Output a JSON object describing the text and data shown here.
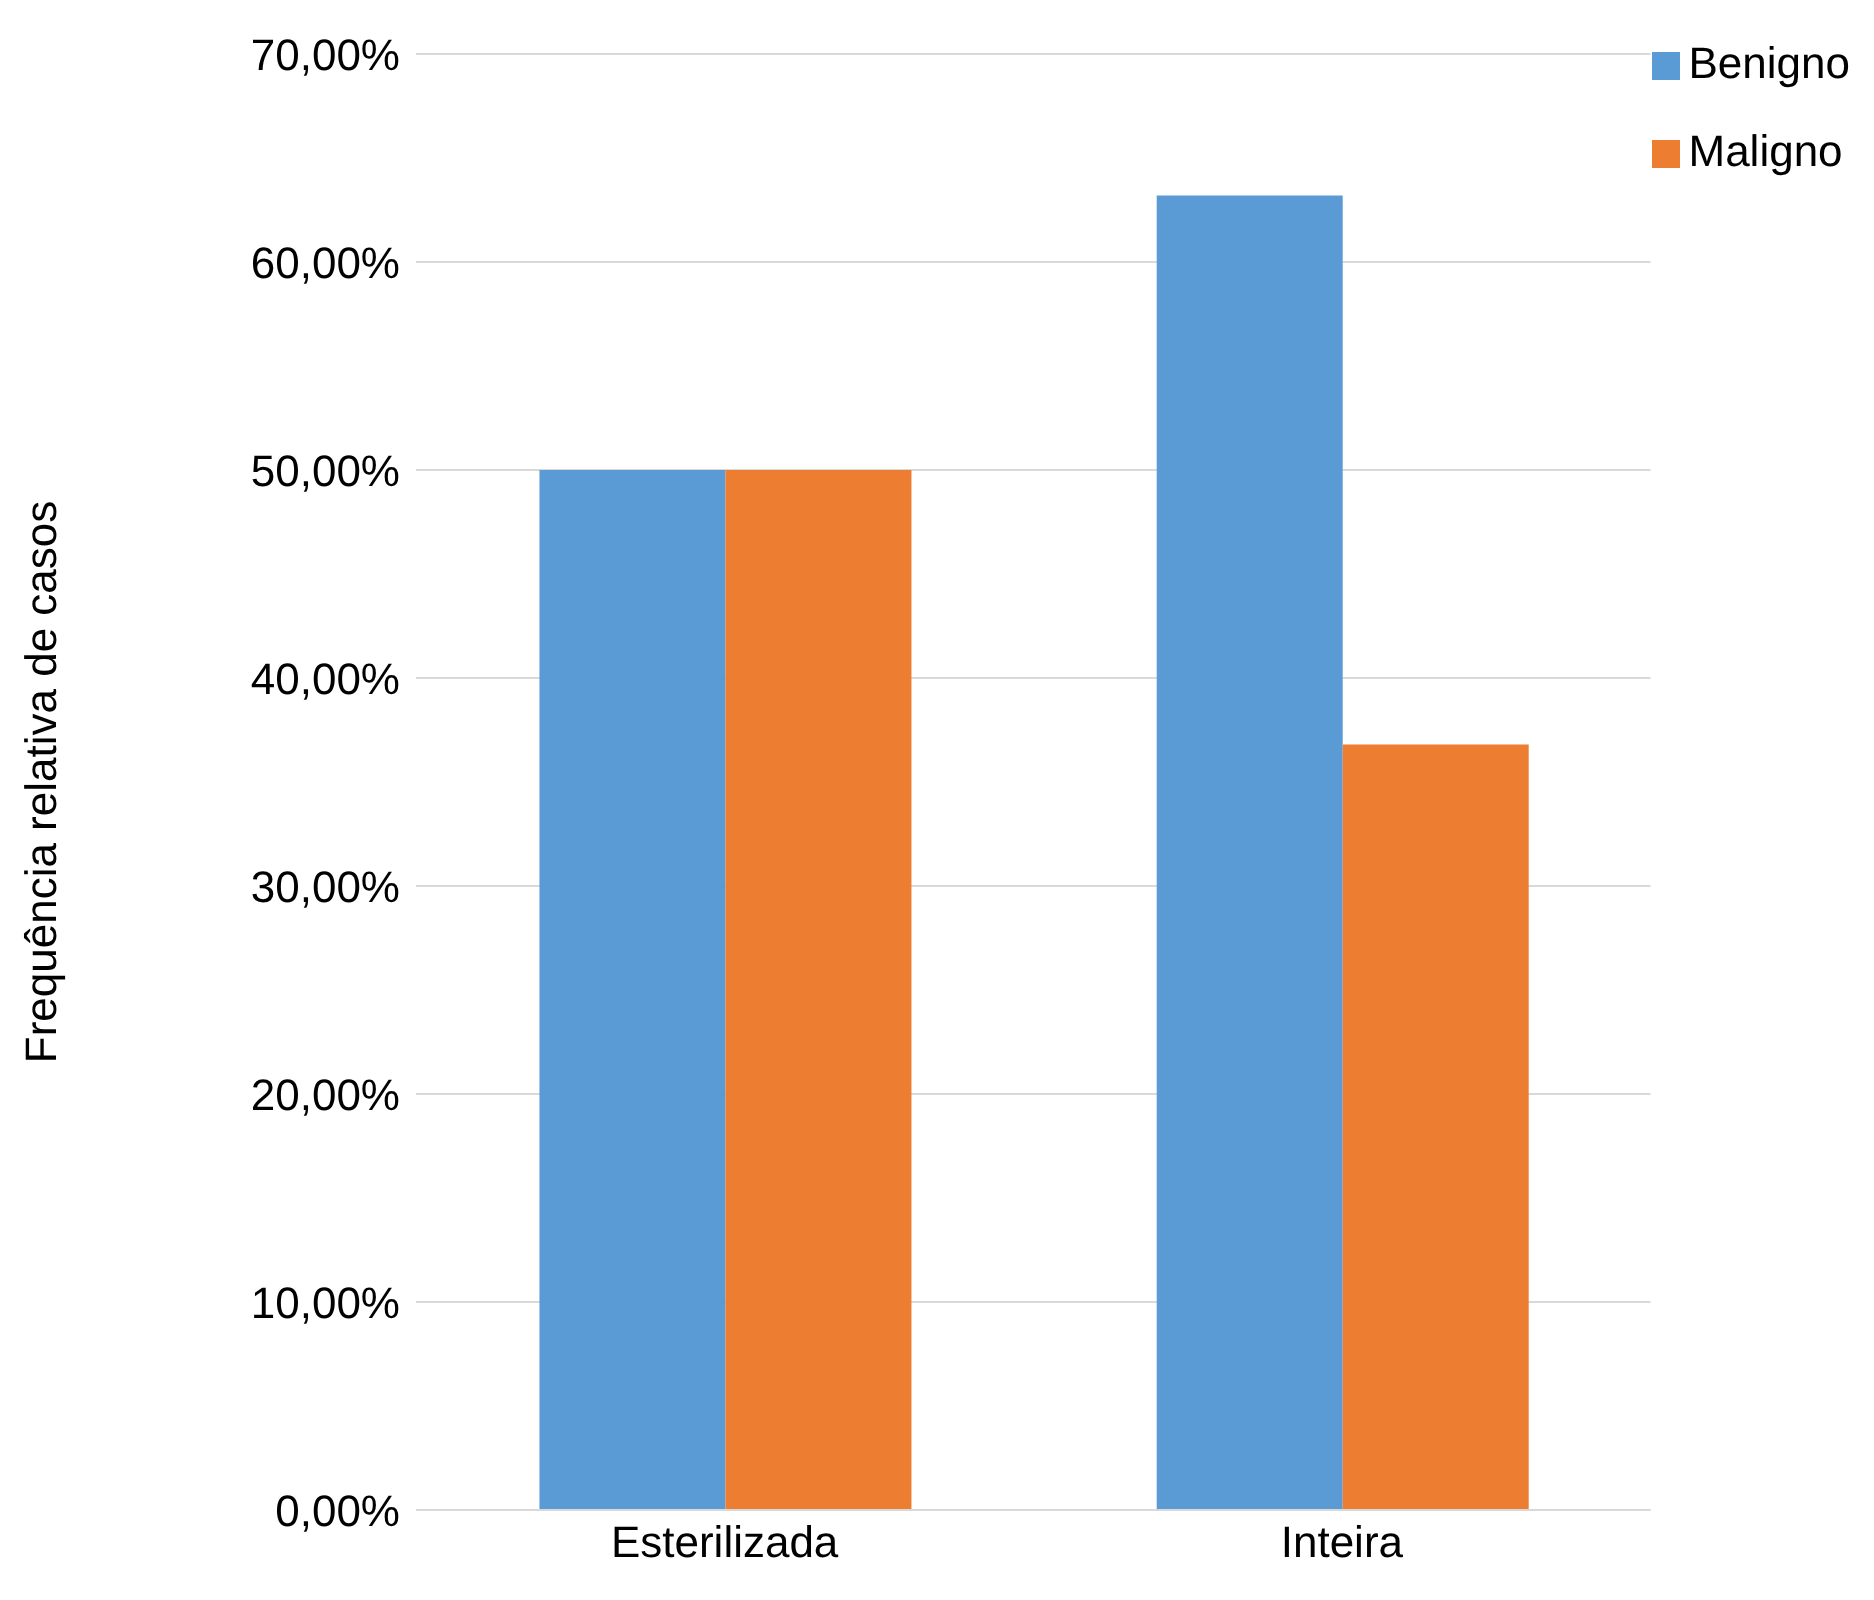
{
  "chart_data": {
    "type": "bar",
    "ylabel": "Frequência relativa de casos",
    "categories": [
      "Esterilizada",
      "Inteira"
    ],
    "series": [
      {
        "name": "Benigno",
        "color": "#5b9bd5",
        "values": [
          50,
          63.2
        ]
      },
      {
        "name": "Maligno",
        "color": "#ed7d31",
        "values": [
          50,
          36.8
        ]
      }
    ],
    "ylim": [
      0,
      70
    ],
    "yticks": [
      {
        "value": 0,
        "label": "0,00%"
      },
      {
        "value": 10,
        "label": "10,00%"
      },
      {
        "value": 20,
        "label": "20,00%"
      },
      {
        "value": 30,
        "label": "30,00%"
      },
      {
        "value": 40,
        "label": "40,00%"
      },
      {
        "value": 50,
        "label": "50,00%"
      },
      {
        "value": 60,
        "label": "60,00%"
      },
      {
        "value": 70,
        "label": "70,00%"
      }
    ],
    "grid": "y",
    "legend": "top right"
  }
}
